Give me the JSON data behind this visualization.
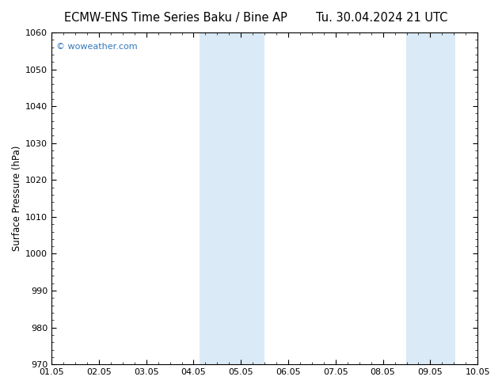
{
  "title_left": "ECMW-ENS Time Series Baku / Bine AP",
  "title_right": "Tu. 30.04.2024 21 UTC",
  "ylabel": "Surface Pressure (hPa)",
  "xlim_start": 0,
  "xlim_end": 9.5,
  "ylim": [
    970,
    1060
  ],
  "yticks": [
    970,
    980,
    990,
    1000,
    1010,
    1020,
    1030,
    1040,
    1050,
    1060
  ],
  "xtick_positions": [
    0,
    0.95,
    1.9,
    2.85,
    3.8,
    4.75,
    5.7,
    6.65,
    7.6,
    8.55
  ],
  "xtick_labels": [
    "01.05",
    "02.05",
    "03.05",
    "04.05",
    "05.05",
    "06.05",
    "07.05",
    "08.05",
    "09.05",
    "10.05"
  ],
  "shaded_bands": [
    {
      "xstart": 3.3,
      "xend": 4.75
    },
    {
      "xstart": 7.9,
      "xend": 9.0
    }
  ],
  "shade_color": "#daeaf7",
  "background_color": "#ffffff",
  "watermark_text": "© woweather.com",
  "watermark_color": "#3377bb",
  "title_fontsize": 10.5,
  "tick_fontsize": 8,
  "ylabel_fontsize": 8.5
}
